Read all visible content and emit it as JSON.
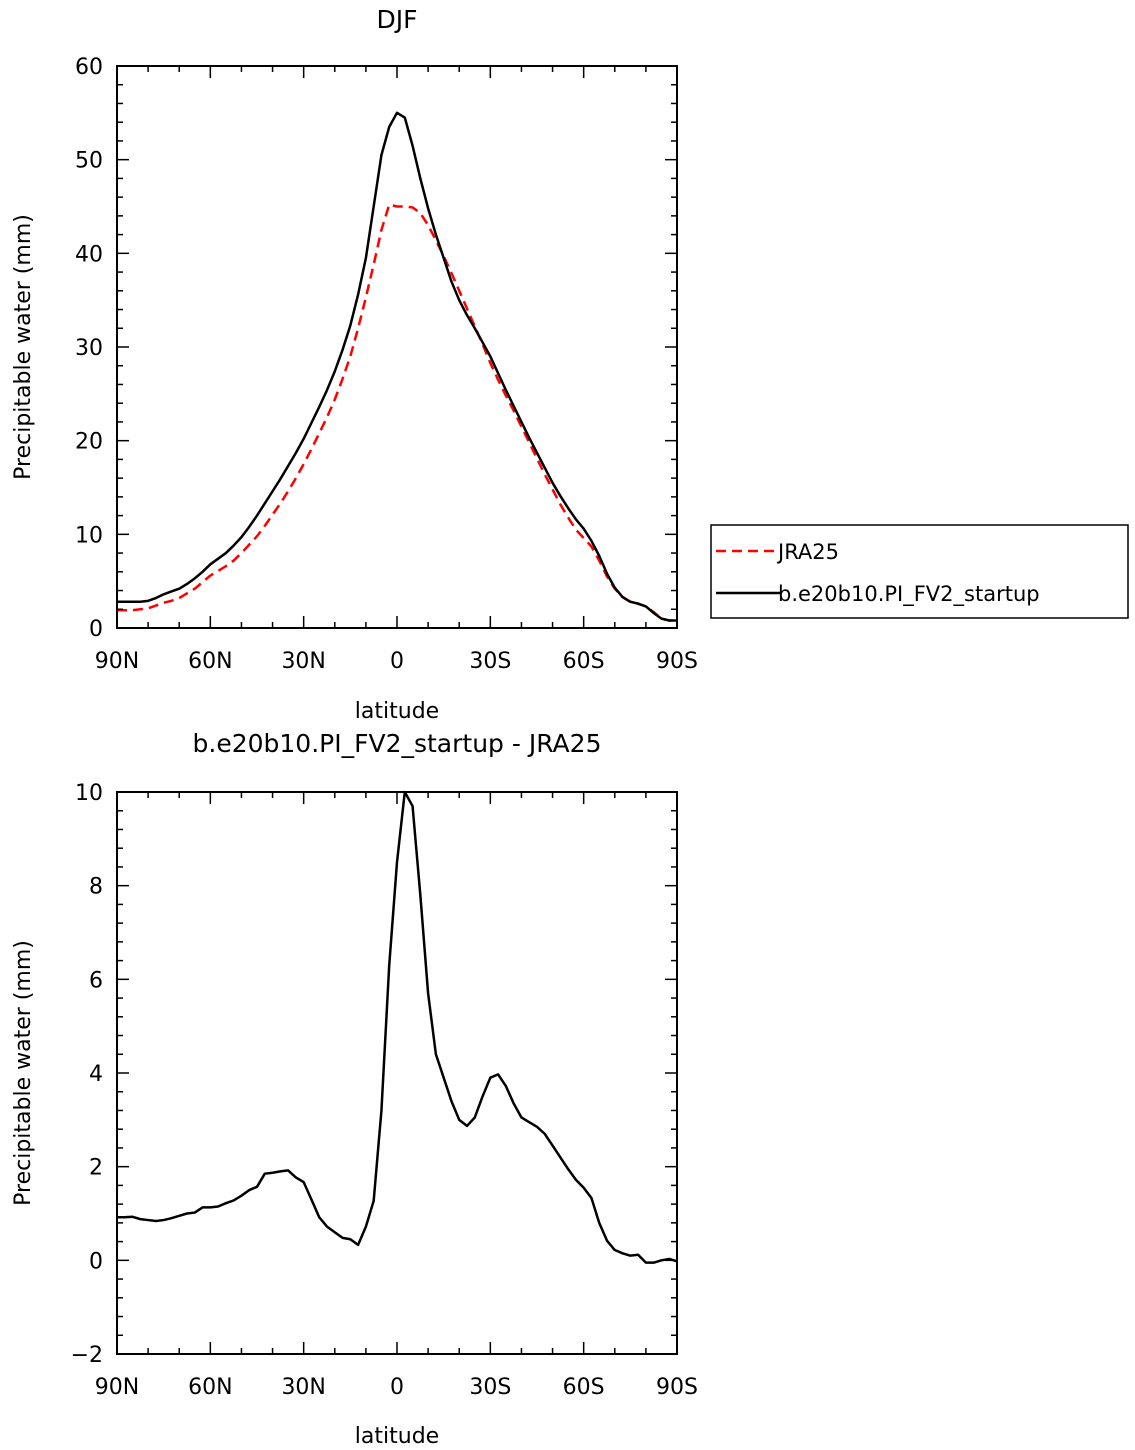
{
  "chart_data": [
    {
      "type": "line",
      "title": "DJF",
      "xlabel": "latitude",
      "ylabel": "Precipitable water (mm)",
      "xlim": [
        90,
        -90
      ],
      "ylim": [
        0,
        60
      ],
      "x_ticks": [
        90,
        60,
        30,
        0,
        -30,
        -60,
        -90
      ],
      "x_tick_labels": [
        "90N",
        "60N",
        "30N",
        "0",
        "30S",
        "60S",
        "90S"
      ],
      "y_ticks": [
        0,
        10,
        20,
        30,
        40,
        50,
        60
      ],
      "y_tick_labels": [
        "0",
        "10",
        "20",
        "30",
        "40",
        "50",
        "60"
      ],
      "grid": false,
      "legend": "right",
      "x": [
        90,
        87.5,
        85,
        82.5,
        80,
        77.5,
        75,
        72.5,
        70,
        67.5,
        65,
        62.5,
        60,
        57.5,
        55,
        52.5,
        50,
        47.5,
        45,
        42.5,
        40,
        37.5,
        35,
        32.5,
        30,
        27.5,
        25,
        22.5,
        20,
        17.5,
        15,
        12.5,
        10,
        7.5,
        5,
        2.5,
        0,
        -2.5,
        -5,
        -7.5,
        -10,
        -12.5,
        -15,
        -17.5,
        -20,
        -22.5,
        -25,
        -27.5,
        -30,
        -32.5,
        -35,
        -37.5,
        -40,
        -42.5,
        -45,
        -47.5,
        -50,
        -52.5,
        -55,
        -57.5,
        -60,
        -62.5,
        -65,
        -67.5,
        -70,
        -72.5,
        -75,
        -77.5,
        -80,
        -82.5,
        -85,
        -87.5,
        -90
      ],
      "series": [
        {
          "name": "JRA25",
          "color": "#ff0000",
          "dash": "dashed",
          "values": [
            1.9,
            1.9,
            1.9,
            2.0,
            2.1,
            2.4,
            2.7,
            2.9,
            3.2,
            3.7,
            4.2,
            4.9,
            5.6,
            6.1,
            6.6,
            7.2,
            8.0,
            8.9,
            9.8,
            10.9,
            12.1,
            13.3,
            14.6,
            16.0,
            17.5,
            19.1,
            20.8,
            22.5,
            24.4,
            26.6,
            29.0,
            32.0,
            35.3,
            38.8,
            42.5,
            45.2,
            45.0,
            45.0,
            44.9,
            44.3,
            43.0,
            41.4,
            39.7,
            37.9,
            36.0,
            34.1,
            32.2,
            30.3,
            28.3,
            26.5,
            24.8,
            23.2,
            21.5,
            19.8,
            18.1,
            16.4,
            14.8,
            13.2,
            11.8,
            10.5,
            9.6,
            8.7,
            7.2,
            5.5,
            4.2,
            3.3,
            2.8,
            2.6,
            2.3,
            1.7,
            1.0,
            0.8,
            0.8
          ]
        },
        {
          "name": "b.e20b10.PI_FV2_startup",
          "color": "#000000",
          "dash": "solid",
          "values": [
            2.8,
            2.8,
            2.8,
            2.8,
            2.9,
            3.2,
            3.6,
            3.9,
            4.2,
            4.7,
            5.3,
            6.0,
            6.8,
            7.4,
            8.0,
            8.8,
            9.7,
            10.8,
            12.0,
            13.3,
            14.6,
            15.9,
            17.3,
            18.7,
            20.2,
            21.9,
            23.6,
            25.4,
            27.4,
            29.7,
            32.3,
            35.6,
            39.5,
            45.0,
            50.5,
            53.5,
            55.0,
            54.5,
            51.5,
            48.0,
            44.8,
            42.0,
            39.5,
            37.0,
            35.0,
            33.4,
            32.0,
            30.5,
            29.0,
            27.2,
            25.4,
            23.7,
            22.0,
            20.3,
            18.7,
            17.1,
            15.5,
            14.1,
            12.8,
            11.6,
            10.6,
            9.3,
            7.7,
            5.8,
            4.3,
            3.3,
            2.8,
            2.6,
            2.3,
            1.6,
            1.0,
            0.8,
            0.8
          ]
        }
      ]
    },
    {
      "type": "line",
      "title": "b.e20b10.PI_FV2_startup - JRA25",
      "xlabel": "latitude",
      "ylabel": "Precipitable water (mm)",
      "xlim": [
        90,
        -90
      ],
      "ylim": [
        -2,
        10
      ],
      "x_ticks": [
        90,
        60,
        30,
        0,
        -30,
        -60,
        -90
      ],
      "x_tick_labels": [
        "90N",
        "60N",
        "30N",
        "0",
        "30S",
        "60S",
        "90S"
      ],
      "y_ticks": [
        -2,
        0,
        2,
        4,
        6,
        8,
        10
      ],
      "y_tick_labels": [
        "-2",
        "0",
        "2",
        "4",
        "6",
        "8",
        "10"
      ],
      "grid": false,
      "x": [
        90,
        87.5,
        85,
        82.5,
        80,
        77.5,
        75,
        72.5,
        70,
        67.5,
        65,
        62.5,
        60,
        57.5,
        55,
        52.5,
        50,
        47.5,
        45,
        42.5,
        40,
        37.5,
        35,
        32.5,
        30,
        27.5,
        25,
        22.5,
        20,
        17.5,
        15,
        12.5,
        10,
        7.5,
        5,
        2.5,
        0,
        -2.5,
        -5,
        -7.5,
        -10,
        -12.5,
        -15,
        -17.5,
        -20,
        -22.5,
        -25,
        -27.5,
        -30,
        -32.5,
        -35,
        -37.5,
        -40,
        -42.5,
        -45,
        -47.5,
        -50,
        -52.5,
        -55,
        -57.5,
        -60,
        -62.5,
        -65,
        -67.5,
        -70,
        -72.5,
        -75,
        -77.5,
        -80,
        -82.5,
        -85,
        -87.5,
        -90
      ],
      "series": [
        {
          "color": "#000000",
          "dash": "solid",
          "values": [
            0.92,
            0.92,
            0.93,
            0.88,
            0.86,
            0.84,
            0.86,
            0.9,
            0.95,
            1.0,
            1.02,
            1.13,
            1.13,
            1.15,
            1.22,
            1.28,
            1.38,
            1.5,
            1.57,
            1.85,
            1.87,
            1.9,
            1.92,
            1.77,
            1.67,
            1.3,
            0.92,
            0.72,
            0.6,
            0.48,
            0.45,
            0.33,
            0.72,
            1.27,
            3.2,
            6.3,
            8.5,
            10.0,
            9.7,
            7.8,
            5.7,
            4.4,
            3.9,
            3.4,
            3.0,
            2.87,
            3.05,
            3.5,
            3.9,
            3.97,
            3.72,
            3.35,
            3.05,
            2.95,
            2.85,
            2.7,
            2.45,
            2.2,
            1.95,
            1.72,
            1.55,
            1.33,
            0.8,
            0.42,
            0.22,
            0.15,
            0.1,
            0.12,
            -0.05,
            -0.05,
            0.0,
            0.03,
            -0.02
          ]
        }
      ]
    }
  ]
}
